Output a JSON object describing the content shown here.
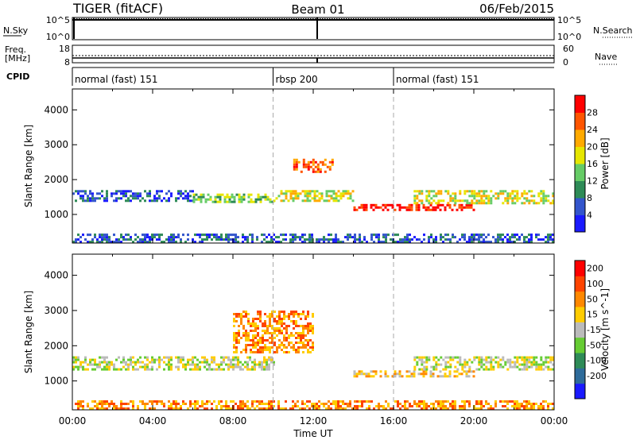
{
  "header": {
    "left": "TIGER (fitACF)",
    "center": "Beam 01",
    "right": "06/Feb/2015"
  },
  "top_panels": {
    "nsky_label": "N.Sky",
    "nsky_ticks": [
      "10^5",
      "10^0"
    ],
    "nsearch_label": "N.Search",
    "nsearch_ticks": [
      "10^5",
      "10^0"
    ],
    "freq_label_1": "Freq.",
    "freq_label_2": "[MHz]",
    "freq_ticks": [
      "18",
      "8"
    ],
    "nave_label": "Nave",
    "nave_ticks": [
      "60",
      "0"
    ],
    "cpid_label": "CPID",
    "cpid_segments": [
      {
        "label": "normal (fast) 151",
        "start_h": 0,
        "end_h": 10
      },
      {
        "label": "rbsp 200",
        "start_h": 10,
        "end_h": 16
      },
      {
        "label": "normal (fast) 151",
        "start_h": 16,
        "end_h": 24
      }
    ]
  },
  "chart_data": [
    {
      "type": "heatmap",
      "name": "power",
      "ylabel": "Slant Range [km]",
      "yticks": [
        1000,
        2000,
        3000,
        4000
      ],
      "ylim": [
        180,
        4600
      ],
      "xlim": [
        0,
        24
      ],
      "colorbar_label": "Power [dB]",
      "colorbar_ticks": [
        "4",
        "8",
        "12",
        "16",
        "20",
        "24",
        "28"
      ],
      "colors": [
        "#1a1aff",
        "#3355cc",
        "#2e8b57",
        "#66cc66",
        "#e6e600",
        "#ffaa00",
        "#ff5500",
        "#ff0000"
      ],
      "echo_bands": [
        {
          "t": [
            0,
            6
          ],
          "r": [
            1380,
            1700
          ],
          "level": 1
        },
        {
          "t": [
            6,
            10
          ],
          "r": [
            1350,
            1600
          ],
          "level": 3
        },
        {
          "t": [
            10,
            14
          ],
          "r": [
            1400,
            1700
          ],
          "level": 4
        },
        {
          "t": [
            11,
            13
          ],
          "r": [
            2200,
            2600
          ],
          "level": 6
        },
        {
          "t": [
            14,
            20
          ],
          "r": [
            1100,
            1300
          ],
          "level": 7
        },
        {
          "t": [
            17,
            24
          ],
          "r": [
            1300,
            1700
          ],
          "level": 4
        },
        {
          "t": [
            0,
            24
          ],
          "r": [
            200,
            450
          ],
          "level": 1
        }
      ]
    },
    {
      "type": "heatmap",
      "name": "velocity",
      "ylabel": "Slant Range [km]",
      "yticks": [
        1000,
        2000,
        3000,
        4000
      ],
      "ylim": [
        180,
        4600
      ],
      "xlim": [
        0,
        24
      ],
      "colorbar_label": "Velocity [m s^-1]",
      "colorbar_ticks": [
        "200",
        "100",
        "50",
        "15",
        "-15",
        "-50",
        "-100",
        "-200"
      ],
      "colors": [
        "#1a1aff",
        "#2e6b9a",
        "#2e8b57",
        "#66cc33",
        "#bbbbbb",
        "#ffcc00",
        "#ff8800",
        "#ff4400",
        "#ff0000"
      ],
      "echo_bands": [
        {
          "t": [
            0,
            10
          ],
          "r": [
            1350,
            1700
          ],
          "level": 4
        },
        {
          "t": [
            8,
            12
          ],
          "r": [
            1800,
            3000
          ],
          "level": 6
        },
        {
          "t": [
            14,
            20
          ],
          "r": [
            1100,
            1300
          ],
          "level": 5
        },
        {
          "t": [
            17,
            24
          ],
          "r": [
            1300,
            1700
          ],
          "level": 4
        },
        {
          "t": [
            0,
            24
          ],
          "r": [
            200,
            450
          ],
          "level": 6
        }
      ]
    }
  ],
  "x_axis": {
    "ticks": [
      "00:00",
      "04:00",
      "08:00",
      "12:00",
      "16:00",
      "20:00",
      "00:00"
    ],
    "label": "Time UT"
  }
}
